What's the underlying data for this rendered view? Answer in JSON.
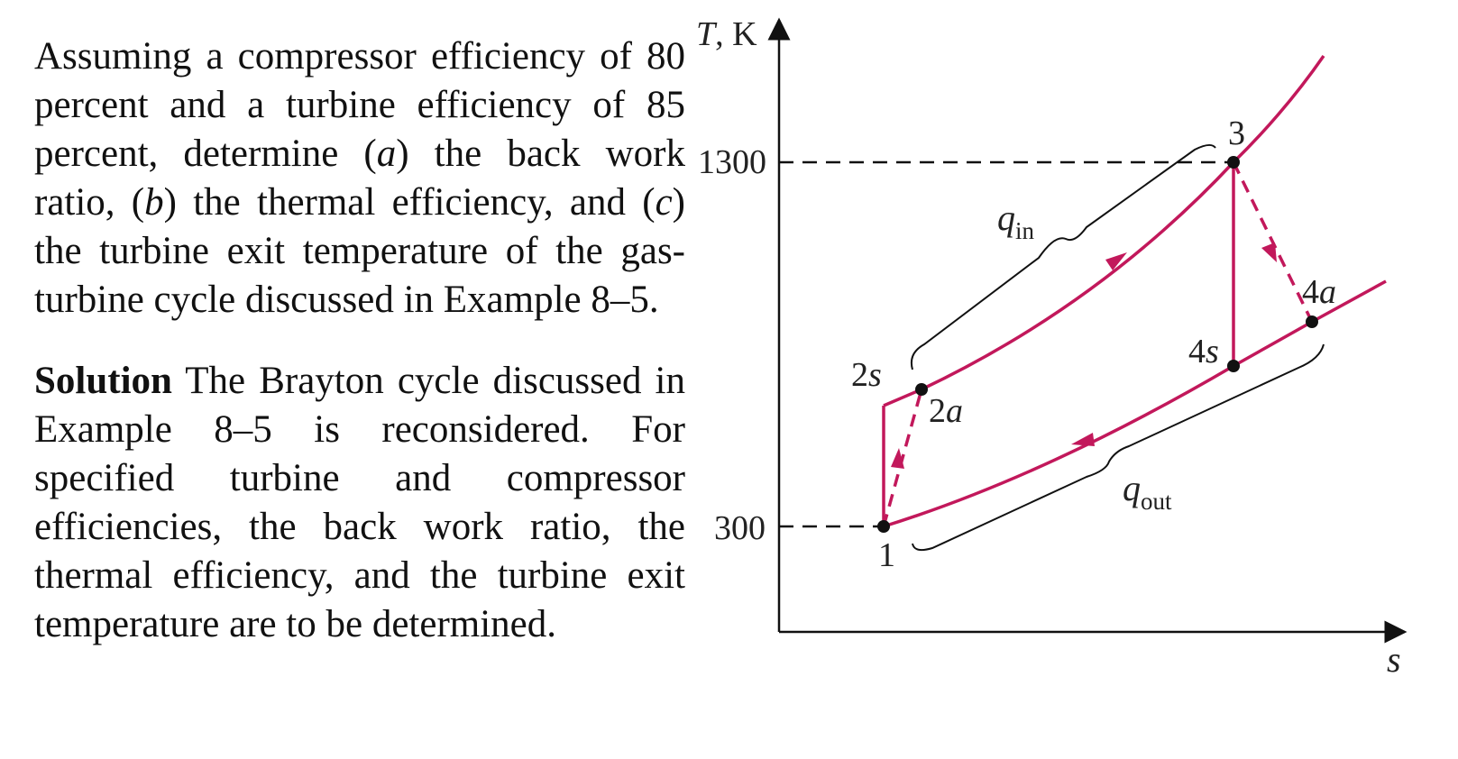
{
  "problem": {
    "lead": "Assuming a compressor efficiency of 80 percent and a turbine efficiency of 85 percent, determine (",
    "a_mark": "a",
    "a_text": ") the back work ratio, (",
    "b_mark": "b",
    "b_text": ") the thermal efficiency, and (",
    "c_mark": "c",
    "c_text": ") the turbine exit temperature of the gas-turbine cycle discussed in Example 8–5."
  },
  "solution": {
    "heading": "Solution",
    "body": " The Brayton cycle discussed in Example 8–5 is reconsidered. For specified turbine and compressor efficiencies, the back work ratio, the thermal efficiency, and the turbine exit temperature are to be determined."
  },
  "diagram": {
    "y_axis_symbol": "T",
    "y_axis_unit": ", K",
    "x_axis_label": "s",
    "tick_high": "1300",
    "tick_low": "300",
    "labels": {
      "p1": "1",
      "p2s_num": "2",
      "p2s_sub": "s",
      "p2a_num": "2",
      "p2a_sub": "a",
      "p3": "3",
      "p4s_num": "4",
      "p4s_sub": "s",
      "p4a_num": "4",
      "p4a_sub": "a",
      "q_in": "q",
      "q_in_sub": "in",
      "q_out": "q",
      "q_out_sub": "out"
    },
    "colors": {
      "process": "#c2185b",
      "axes": "#111111",
      "reference": "#111111"
    }
  }
}
